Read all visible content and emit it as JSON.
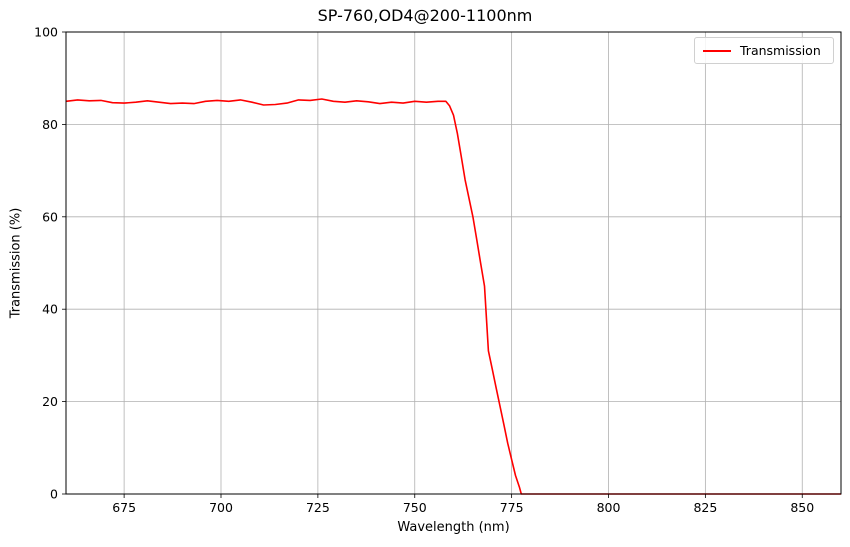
{
  "chart_data": {
    "type": "line",
    "title": "SP-760,OD4@200-1100nm",
    "xlabel": "Wavelength (nm)",
    "ylabel": "Transmission (%)",
    "xlim": [
      660,
      860
    ],
    "ylim": [
      0,
      100
    ],
    "xticks": [
      675,
      700,
      725,
      750,
      775,
      800,
      825,
      850
    ],
    "yticks": [
      0,
      20,
      40,
      60,
      80,
      100
    ],
    "grid": true,
    "legend_position": "upper right",
    "series": [
      {
        "name": "Transmission",
        "color": "#ff0000",
        "x": [
          660,
          663,
          666,
          669,
          672,
          675,
          678,
          681,
          684,
          687,
          690,
          693,
          696,
          699,
          702,
          705,
          708,
          711,
          714,
          717,
          720,
          723,
          726,
          729,
          732,
          735,
          738,
          741,
          744,
          747,
          750,
          753,
          756,
          758,
          759,
          760,
          761,
          762,
          763,
          764,
          765,
          766,
          767,
          768,
          769,
          770,
          771,
          772,
          773,
          774,
          775,
          776,
          777,
          777.5,
          780,
          790,
          800,
          810,
          820,
          830,
          840,
          850,
          860
        ],
        "y": [
          85.0,
          85.3,
          85.1,
          85.2,
          84.7,
          84.6,
          84.8,
          85.1,
          84.8,
          84.5,
          84.6,
          84.5,
          85.0,
          85.2,
          85.0,
          85.3,
          84.8,
          84.2,
          84.3,
          84.6,
          85.3,
          85.2,
          85.5,
          85.0,
          84.8,
          85.1,
          84.9,
          84.5,
          84.8,
          84.6,
          85.0,
          84.8,
          85.0,
          85.0,
          84.0,
          82.0,
          78.0,
          73.0,
          68.0,
          64.0,
          60.0,
          55.0,
          50.0,
          45.0,
          31.0,
          27.0,
          23.0,
          19.0,
          15.0,
          11.0,
          7.5,
          4.0,
          1.5,
          0.0,
          0.0,
          0.0,
          0.0,
          0.0,
          0.0,
          0.0,
          0.0,
          0.0,
          0.0
        ]
      }
    ]
  },
  "legend": {
    "label": "Transmission"
  }
}
